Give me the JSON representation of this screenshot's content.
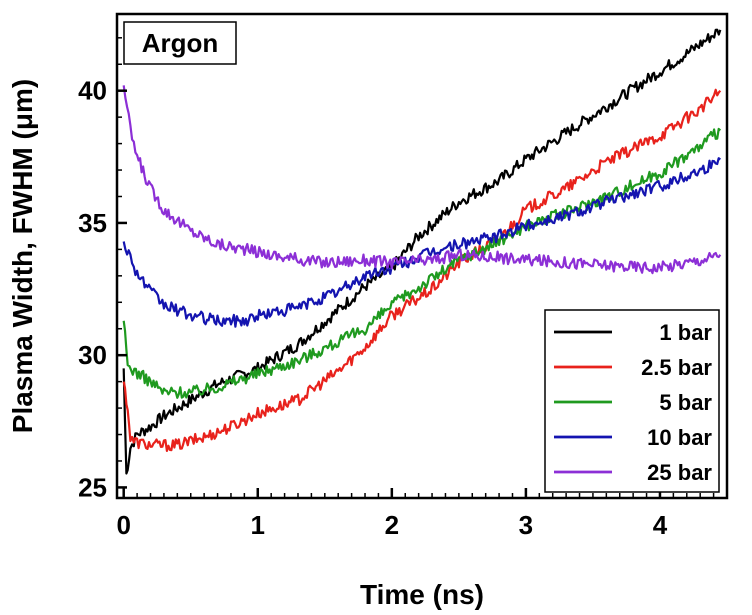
{
  "chart_data": {
    "type": "line",
    "annotation": "Argon",
    "xlabel": "Time (ns)",
    "ylabel": "Plasma Width, FWHM (μm)",
    "xlim": [
      -0.05,
      4.5
    ],
    "ylim": [
      24.6,
      42.9
    ],
    "xticks": [
      0,
      1,
      2,
      3,
      4
    ],
    "yticks": [
      25,
      30,
      35,
      40
    ],
    "grid": false,
    "legend_position": "bottom-right",
    "series": [
      {
        "name": "1 bar",
        "color": "#000000",
        "x": [
          0.0,
          0.02,
          0.05,
          0.1,
          0.2,
          0.3,
          0.5,
          0.7,
          1.0,
          1.3,
          1.6,
          1.8,
          2.0,
          2.2,
          2.5,
          2.8,
          3.0,
          3.3,
          3.6,
          3.9,
          4.2,
          4.45
        ],
        "y": [
          29.5,
          25.5,
          26.5,
          27.0,
          27.3,
          27.7,
          28.3,
          28.9,
          29.5,
          30.4,
          31.7,
          32.6,
          33.3,
          34.5,
          35.8,
          36.6,
          37.4,
          38.4,
          39.4,
          40.4,
          41.4,
          42.3
        ]
      },
      {
        "name": "2.5 bar",
        "color": "#e8221c",
        "x": [
          0.0,
          0.03,
          0.05,
          0.1,
          0.2,
          0.4,
          0.6,
          0.8,
          1.0,
          1.3,
          1.6,
          1.8,
          2.0,
          2.3,
          2.5,
          2.8,
          3.0,
          3.3,
          3.6,
          4.0,
          4.3,
          4.45
        ],
        "y": [
          29.0,
          28.0,
          26.8,
          26.7,
          26.6,
          26.6,
          26.9,
          27.3,
          27.8,
          28.3,
          29.4,
          30.3,
          31.5,
          32.5,
          33.5,
          34.4,
          35.5,
          36.3,
          37.3,
          38.3,
          39.3,
          40.0
        ]
      },
      {
        "name": "5 bar",
        "color": "#1f9a1f",
        "x": [
          0.0,
          0.03,
          0.08,
          0.2,
          0.3,
          0.5,
          0.7,
          1.0,
          1.3,
          1.6,
          1.8,
          2.0,
          2.3,
          2.5,
          2.8,
          3.0,
          3.3,
          3.6,
          4.0,
          4.3,
          4.45
        ],
        "y": [
          31.3,
          29.6,
          29.4,
          29.0,
          28.6,
          28.6,
          28.8,
          29.3,
          29.8,
          30.5,
          31.0,
          31.9,
          32.9,
          33.6,
          34.3,
          34.9,
          35.4,
          36.0,
          36.9,
          37.9,
          38.5
        ]
      },
      {
        "name": "10 bar",
        "color": "#1414b0",
        "x": [
          0.0,
          0.05,
          0.1,
          0.2,
          0.3,
          0.5,
          0.7,
          0.9,
          1.0,
          1.3,
          1.6,
          1.8,
          2.0,
          2.3,
          2.5,
          2.8,
          3.0,
          3.3,
          3.6,
          4.0,
          4.3,
          4.45
        ],
        "y": [
          34.3,
          33.7,
          33.1,
          32.4,
          31.9,
          31.5,
          31.3,
          31.3,
          31.5,
          31.8,
          32.4,
          33.0,
          33.3,
          33.9,
          34.2,
          34.5,
          34.9,
          35.3,
          35.8,
          36.4,
          37.0,
          37.4
        ]
      },
      {
        "name": "25 bar",
        "color": "#8c2fd6",
        "x": [
          0.0,
          0.05,
          0.1,
          0.2,
          0.3,
          0.5,
          0.7,
          0.9,
          1.2,
          1.5,
          1.8,
          2.0,
          2.3,
          2.5,
          2.8,
          3.0,
          3.3,
          3.6,
          4.0,
          4.3,
          4.45
        ],
        "y": [
          40.2,
          38.5,
          37.5,
          36.3,
          35.5,
          34.7,
          34.2,
          34.0,
          33.7,
          33.5,
          33.6,
          33.5,
          33.6,
          33.8,
          33.7,
          33.6,
          33.5,
          33.4,
          33.3,
          33.6,
          33.8
        ]
      }
    ]
  }
}
